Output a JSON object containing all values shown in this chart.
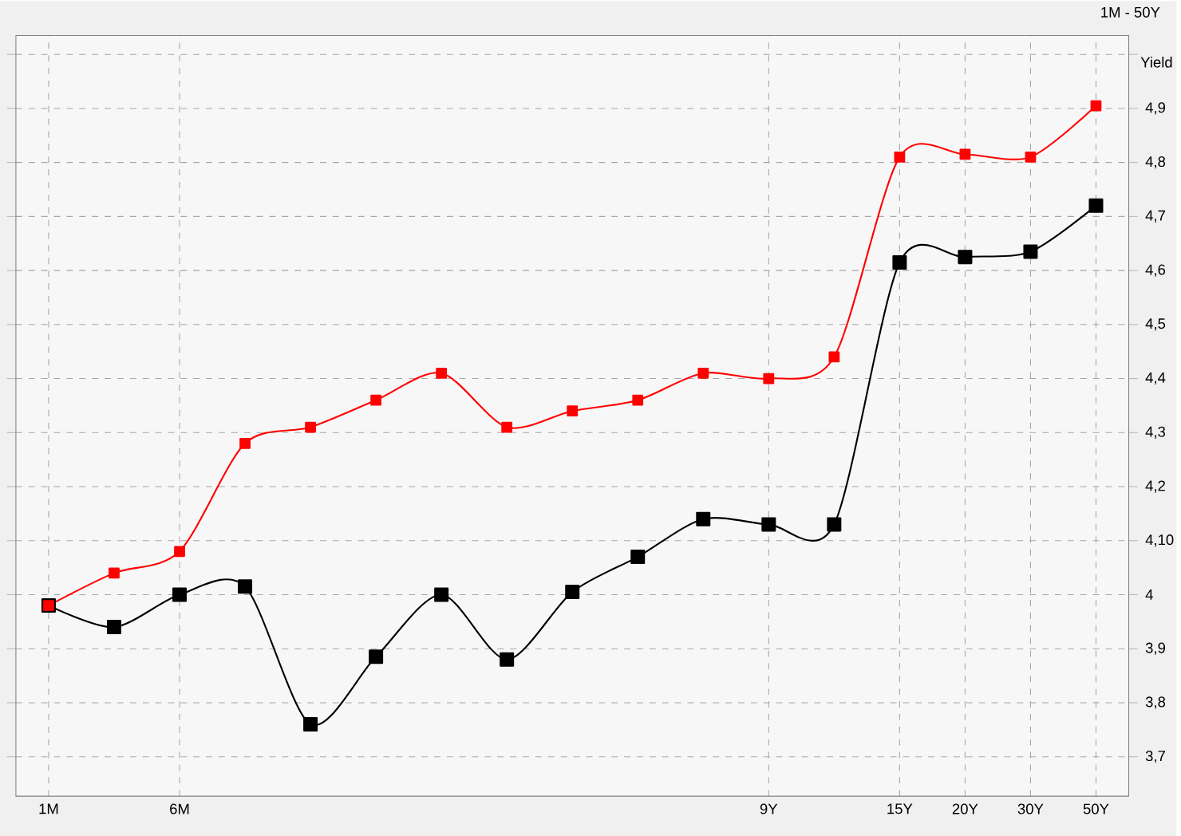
{
  "chart_data": {
    "type": "line",
    "title": "1M - 50Y",
    "ylabel": "Yield",
    "categories": [
      "1M",
      null,
      "6M",
      null,
      null,
      null,
      null,
      null,
      null,
      null,
      null,
      "9Y",
      null,
      "15Y",
      "20Y",
      "30Y",
      "50Y"
    ],
    "series": [
      {
        "color": "#ff0000",
        "values": [
          3.98,
          4.04,
          4.08,
          4.28,
          4.31,
          4.36,
          4.41,
          4.31,
          4.34,
          4.36,
          4.41,
          4.4,
          4.44,
          4.81,
          4.815,
          4.81,
          4.905
        ]
      },
      {
        "color": "#000000",
        "values": [
          3.98,
          3.94,
          4.0,
          4.015,
          3.76,
          3.885,
          4.0,
          3.88,
          4.005,
          4.07,
          4.14,
          4.13,
          4.13,
          4.615,
          4.625,
          4.635,
          4.72
        ]
      }
    ],
    "ylim": [
      3.627,
      5.035
    ],
    "yticks": [
      {
        "value": 3.7,
        "label": "3,7"
      },
      {
        "value": 3.8,
        "label": "3,8"
      },
      {
        "value": 3.9,
        "label": "3,9"
      },
      {
        "value": 4.0,
        "label": "4"
      },
      {
        "value": 4.1,
        "label": "4,10"
      },
      {
        "value": 4.2,
        "label": "4,2"
      },
      {
        "value": 4.3,
        "label": "4,3"
      },
      {
        "value": 4.4,
        "label": "4,4"
      },
      {
        "value": 4.5,
        "label": "4,5"
      },
      {
        "value": 4.6,
        "label": "4,6"
      },
      {
        "value": 4.7,
        "label": "4,7"
      },
      {
        "value": 4.8,
        "label": "4,8"
      },
      {
        "value": 4.9,
        "label": "4,9"
      },
      {
        "value": 5.0,
        "label": null
      }
    ],
    "grid": true,
    "marker": "square",
    "line_style": "solid"
  }
}
